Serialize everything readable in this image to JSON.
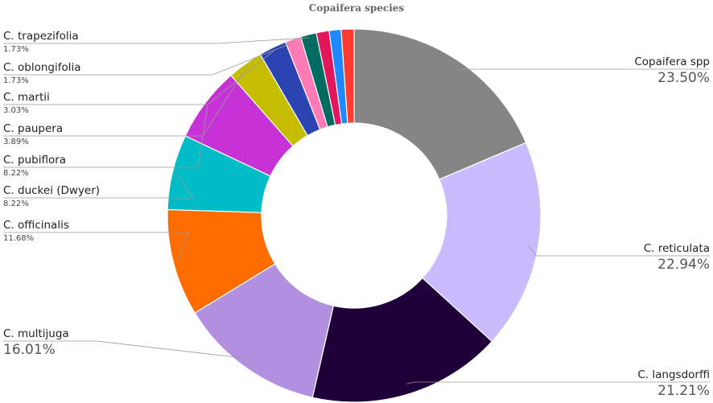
{
  "chart_data": {
    "type": "pie",
    "title": "Copaifera species",
    "slices": [
      {
        "label": "Copaifera spp",
        "value": 23.5,
        "value_label": "23.50%",
        "color": "#858585"
      },
      {
        "label": "C. reticulata",
        "value": 22.94,
        "value_label": "22.94%",
        "color": "#c9bbfd"
      },
      {
        "label": "C. langsdorffi",
        "value": 21.21,
        "value_label": "21.21%",
        "color": "#1f0038"
      },
      {
        "label": "C. multijuga",
        "value": 16.01,
        "value_label": "16.01%",
        "color": "#b28fdf"
      },
      {
        "label": "C. officinalis",
        "value": 11.68,
        "value_label": "11.68%",
        "color": "#ff6d00"
      },
      {
        "label": "C. duckei (Dwyer)",
        "value": 8.22,
        "value_label": "8.22%",
        "color": "#00bcc6"
      },
      {
        "label": "C. pubiflora",
        "value": 8.22,
        "value_label": "8.22%",
        "color": "#c632d6"
      },
      {
        "label": "C. paupera",
        "value": 3.89,
        "value_label": "3.89%",
        "color": "#c6bc00"
      },
      {
        "label": "C. martii",
        "value": 3.03,
        "value_label": "3.03%",
        "color": "#2b44b2"
      },
      {
        "label": "C. oblongifolia",
        "value": 1.73,
        "value_label": "1.73%",
        "color": "#ff7bb8"
      },
      {
        "label": "C. trapezifolia",
        "value": 1.73,
        "value_label": "1.73%",
        "color": "#006b61"
      },
      {
        "label": "",
        "value": 1.4,
        "value_label": "",
        "color": "#e0175d"
      },
      {
        "label": "",
        "value": 1.3,
        "value_label": "",
        "color": "#1e88ff"
      },
      {
        "label": "",
        "value": 1.4,
        "value_label": "",
        "color": "#ff3a30"
      }
    ],
    "legend": "none",
    "donut": true
  }
}
